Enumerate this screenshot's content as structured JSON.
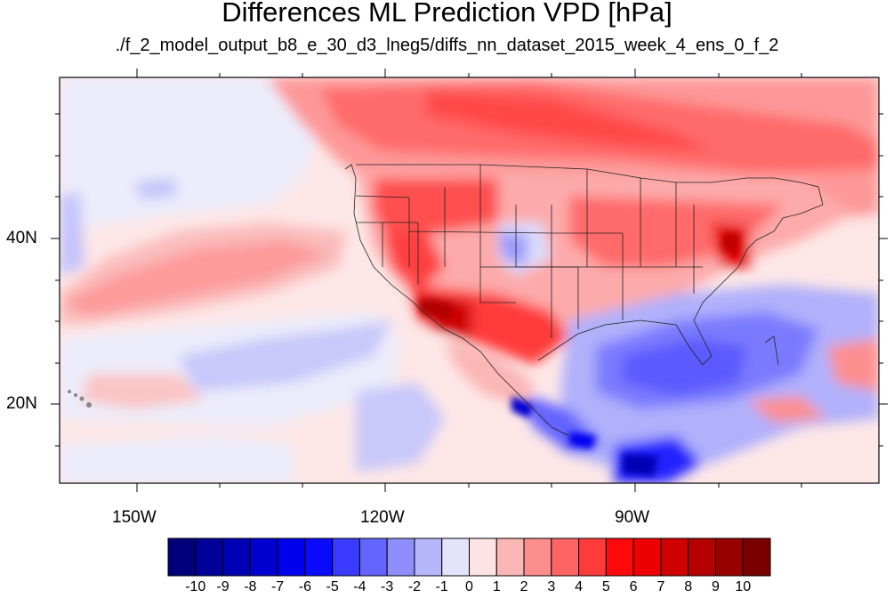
{
  "title": "Differences ML Prediction VPD [hPa]",
  "subtitle": "./f_2_model_output_b8_e_30_d3_lneg5/diffs_nn_dataset_2015_week_4_ens_0_f_2",
  "lat_labels": [
    "40N",
    "20N"
  ],
  "lon_labels": [
    "150W",
    "120W",
    "90W"
  ],
  "colorbar": {
    "labels": [
      "-10",
      "-9",
      "-8",
      "-7",
      "-6",
      "-5",
      "-4",
      "-3",
      "-2",
      "-1",
      "0",
      "1",
      "2",
      "3",
      "4",
      "5",
      "6",
      "7",
      "8",
      "9",
      "10"
    ],
    "colors": [
      "#00007a",
      "#000099",
      "#0000b5",
      "#0000d1",
      "#0000ee",
      "#0a0aff",
      "#3a3aff",
      "#6464ff",
      "#8e8efd",
      "#b6b6fb",
      "#e3e3fb",
      "#fde3e3",
      "#fbb6b6",
      "#fd8e8e",
      "#ff6464",
      "#ff3a3a",
      "#ff0a0a",
      "#ee0000",
      "#d10000",
      "#b50000",
      "#990000",
      "#7a0000"
    ]
  }
}
